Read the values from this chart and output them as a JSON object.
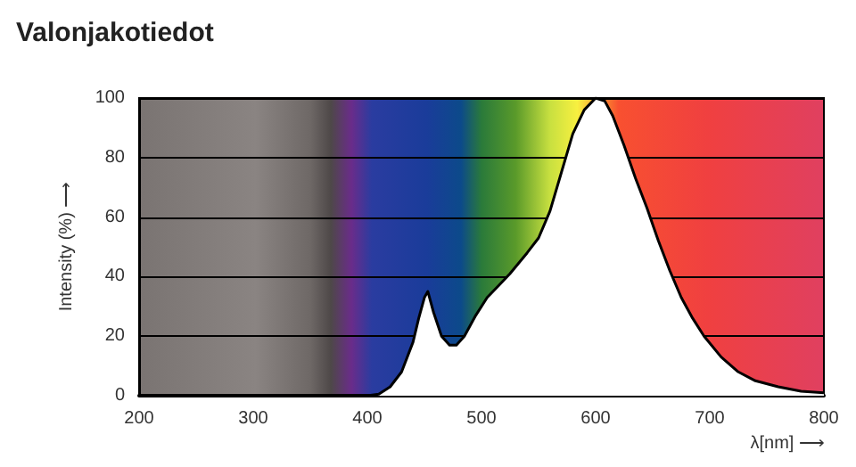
{
  "chart_data": {
    "type": "area",
    "title": "Valonjakotiedot",
    "xlabel": "λ[nm] ⟶",
    "ylabel": "Intensity (%) ⟶",
    "xlim": [
      200,
      800
    ],
    "xticks": [
      200,
      300,
      400,
      500,
      600,
      700,
      800
    ],
    "ylim": [
      0,
      100
    ],
    "yticks": [
      0,
      20,
      40,
      60,
      80,
      100
    ],
    "grid": "y",
    "series": [
      {
        "color": "#000000",
        "x": [
          400,
          410,
          420,
          430,
          440,
          445,
          450,
          453,
          458,
          465,
          472,
          478,
          485,
          495,
          505,
          515,
          525,
          540,
          550,
          560,
          570,
          580,
          590,
          600,
          608,
          615,
          625,
          635,
          645,
          655,
          665,
          675,
          685,
          695,
          710,
          725,
          740,
          760,
          780,
          800
        ],
        "values": [
          0,
          0.5,
          3,
          8,
          18,
          26,
          33,
          35,
          28,
          20,
          17,
          17,
          20,
          27,
          33,
          37,
          41,
          48,
          53,
          62,
          75,
          88,
          96,
          100,
          99,
          94,
          84,
          73,
          63,
          52,
          42,
          33,
          26,
          20,
          13,
          8,
          5,
          3,
          1.5,
          1
        ]
      }
    ]
  }
}
